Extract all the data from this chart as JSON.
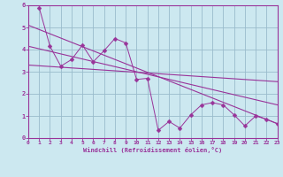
{
  "xlabel": "Windchill (Refroidissement éolien,°C)",
  "bg_color": "#cce8f0",
  "grid_color": "#99bbcc",
  "line_color": "#993399",
  "xlim": [
    0,
    23
  ],
  "ylim": [
    0,
    6
  ],
  "xticks": [
    0,
    1,
    2,
    3,
    4,
    5,
    6,
    7,
    8,
    9,
    10,
    11,
    12,
    13,
    14,
    15,
    16,
    17,
    18,
    19,
    20,
    21,
    22,
    23
  ],
  "yticks": [
    0,
    1,
    2,
    3,
    4,
    5,
    6
  ],
  "scatter_x": [
    1,
    2,
    3,
    4,
    5,
    6,
    7,
    8,
    9,
    10,
    11,
    12,
    13,
    14,
    15,
    16,
    17,
    18,
    19,
    20,
    21,
    22,
    23
  ],
  "scatter_y": [
    5.9,
    4.15,
    3.25,
    3.55,
    4.2,
    3.45,
    3.95,
    4.5,
    4.3,
    2.65,
    2.7,
    0.35,
    0.75,
    0.45,
    1.05,
    1.5,
    1.6,
    1.5,
    1.05,
    0.55,
    1.0,
    0.85,
    0.65
  ],
  "line1_x": [
    0,
    23
  ],
  "line1_y": [
    5.1,
    0.65
  ],
  "line2_x": [
    0,
    23
  ],
  "line2_y": [
    4.15,
    1.5
  ],
  "line3_x": [
    0,
    23
  ],
  "line3_y": [
    3.3,
    2.55
  ],
  "marker_size": 2.5,
  "marker": "D"
}
